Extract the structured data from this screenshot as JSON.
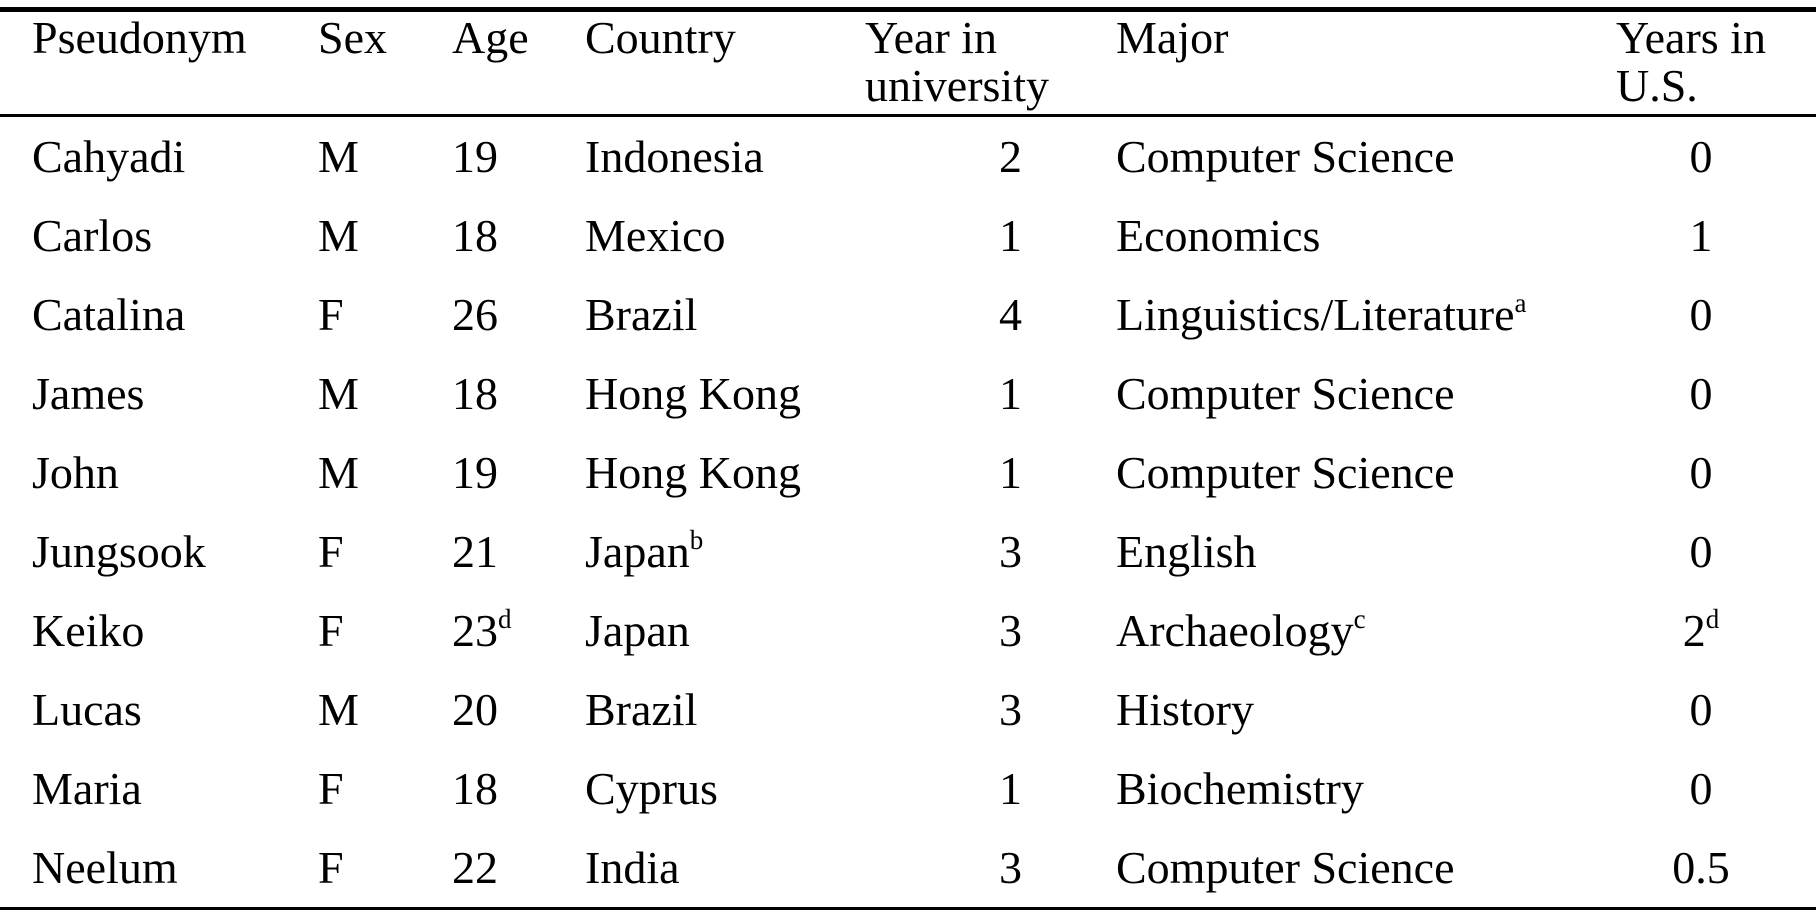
{
  "table": {
    "columns": [
      {
        "label": "Pseudonym"
      },
      {
        "label": "Sex"
      },
      {
        "label": "Age"
      },
      {
        "label": "Country"
      },
      {
        "label": "Year in university"
      },
      {
        "label": "Major"
      },
      {
        "label": "Years in U.S."
      }
    ],
    "rows": [
      {
        "pseudonym": "Cahyadi",
        "sex": "M",
        "age": "19",
        "age_note": "",
        "country": "Indonesia",
        "country_note": "",
        "year_in_university": "2",
        "major": "Computer Science",
        "major_note": "",
        "years_in_us": "0",
        "years_in_us_note": ""
      },
      {
        "pseudonym": "Carlos",
        "sex": "M",
        "age": "18",
        "age_note": "",
        "country": "Mexico",
        "country_note": "",
        "year_in_university": "1",
        "major": "Economics",
        "major_note": "",
        "years_in_us": "1",
        "years_in_us_note": ""
      },
      {
        "pseudonym": "Catalina",
        "sex": "F",
        "age": "26",
        "age_note": "",
        "country": "Brazil",
        "country_note": "",
        "year_in_university": "4",
        "major": "Linguistics/Literature",
        "major_note": "a",
        "years_in_us": "0",
        "years_in_us_note": ""
      },
      {
        "pseudonym": "James",
        "sex": "M",
        "age": "18",
        "age_note": "",
        "country": "Hong Kong",
        "country_note": "",
        "year_in_university": "1",
        "major": "Computer Science",
        "major_note": "",
        "years_in_us": "0",
        "years_in_us_note": ""
      },
      {
        "pseudonym": "John",
        "sex": "M",
        "age": "19",
        "age_note": "",
        "country": "Hong Kong",
        "country_note": "",
        "year_in_university": "1",
        "major": "Computer Science",
        "major_note": "",
        "years_in_us": "0",
        "years_in_us_note": ""
      },
      {
        "pseudonym": "Jungsook",
        "sex": "F",
        "age": "21",
        "age_note": "",
        "country": "Japan",
        "country_note": "b",
        "year_in_university": "3",
        "major": "English",
        "major_note": "",
        "years_in_us": "0",
        "years_in_us_note": ""
      },
      {
        "pseudonym": "Keiko",
        "sex": "F",
        "age": "23",
        "age_note": "d",
        "country": "Japan",
        "country_note": "",
        "year_in_university": "3",
        "major": "Archaeology",
        "major_note": "c",
        "years_in_us": "2",
        "years_in_us_note": "d"
      },
      {
        "pseudonym": "Lucas",
        "sex": "M",
        "age": "20",
        "age_note": "",
        "country": "Brazil",
        "country_note": "",
        "year_in_university": "3",
        "major": "History",
        "major_note": "",
        "years_in_us": "0",
        "years_in_us_note": ""
      },
      {
        "pseudonym": "Maria",
        "sex": "F",
        "age": "18",
        "age_note": "",
        "country": "Cyprus",
        "country_note": "",
        "year_in_university": "1",
        "major": "Biochemistry",
        "major_note": "",
        "years_in_us": "0",
        "years_in_us_note": ""
      },
      {
        "pseudonym": "Neelum",
        "sex": "F",
        "age": "22",
        "age_note": "",
        "country": "India",
        "country_note": "",
        "year_in_university": "3",
        "major": "Computer Science",
        "major_note": "",
        "years_in_us": "0.5",
        "years_in_us_note": ""
      }
    ]
  },
  "colors": {
    "text": "#000000",
    "background": "#ffffff",
    "rule": "#000000"
  }
}
